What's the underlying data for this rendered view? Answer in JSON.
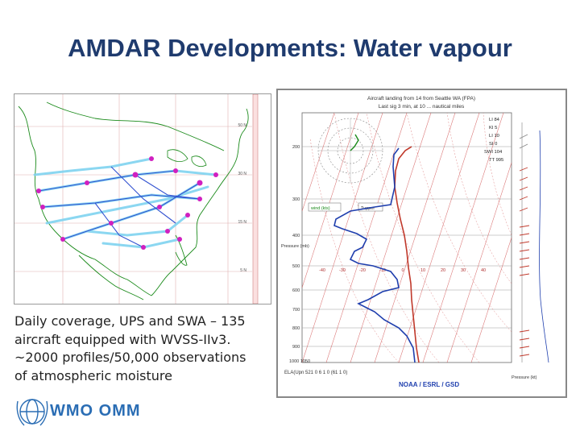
{
  "slide": {
    "title": "AMDAR Developments: Water vapour",
    "caption_lines": [
      "Daily coverage, UPS and SWA – 135",
      "aircraft equipped with WVSS-IIv3.",
      "~2000 profiles/50,000 observations",
      "of atmospheric moisture"
    ]
  },
  "logo": {
    "text": "WMO OMM",
    "color": "#2a6db4"
  },
  "skewt": {
    "header_1": "Aircraft landing from 14 from Seattle WA (FPA)",
    "header_2": "Last sig 3 min, at 10 ... nautical miles",
    "side_index_labels": [
      "LI 84",
      "KI 5",
      "LI 10",
      "SI 0",
      "SWI 104",
      "TT 995"
    ],
    "legend_wind": "wind (kts)",
    "legend_temp": "Tupper",
    "pressure_label": "Pressure (mb)",
    "pressure_ticks": [
      "200",
      "300",
      "400",
      "500",
      "600",
      "700",
      "800",
      "900",
      "1000 1050"
    ],
    "footer_left": "ELA(Upn 521 0 6 1 0 (61 1 0)",
    "footer_brand": "NOAA / ESRL / GSD",
    "footer_right": "Pressure (kt)",
    "bottom_temp_ticks": [
      "-40",
      "-30",
      "-20",
      "-10",
      "0",
      "10",
      "20",
      "30",
      "40"
    ],
    "colors": {
      "temp": "#c0392b",
      "dew": "#1f3fae",
      "grid_red": "#d05050",
      "grid_gray": "#9a9a9a"
    }
  },
  "map": {
    "right_lat_labels": [
      "50 N",
      "30 N",
      "15 N",
      "5 N"
    ],
    "colors": {
      "track_light": "#7fd3f0",
      "track_dark": "#3050d0",
      "marker": "#d020c0",
      "coast": "#1a8a1a"
    }
  }
}
